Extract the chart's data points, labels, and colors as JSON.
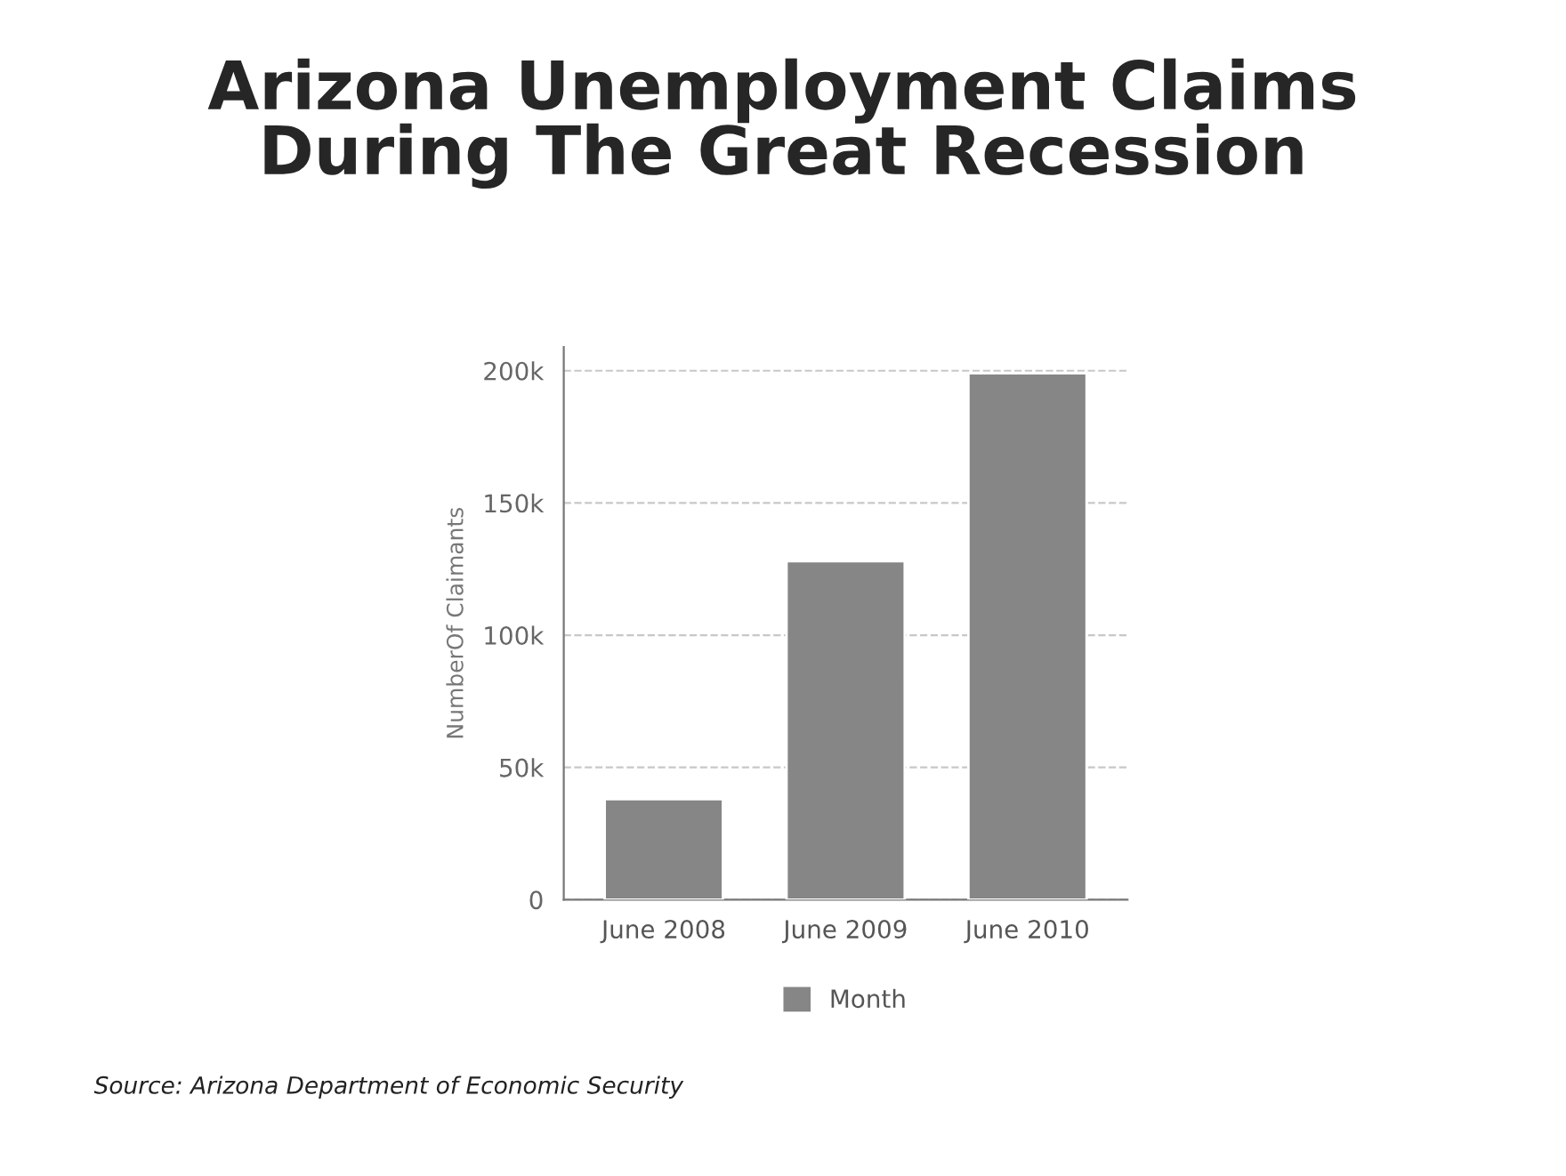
{
  "chart_data": {
    "type": "bar",
    "title": "Arizona Unemployment Claims\nDuring The Great Recession",
    "ylabel": "NumberOf Claimants",
    "categories": [
      "June 2008",
      "June 2009",
      "June 2010"
    ],
    "series": [
      {
        "name": "Month",
        "color": "#868686",
        "values": [
          38000,
          128000,
          199000
        ]
      }
    ],
    "ylim": [
      0,
      209000
    ],
    "yticks": [
      0,
      {
        "value": 50000,
        "label": "50k"
      },
      {
        "value": 100000,
        "label": "100k"
      },
      {
        "value": 150000,
        "label": "150k"
      },
      {
        "value": 200000,
        "label": "200k"
      }
    ],
    "grid": "y",
    "legend": "bottom",
    "annotations": [
      "Source: Arizona Department of Economic Security"
    ]
  }
}
